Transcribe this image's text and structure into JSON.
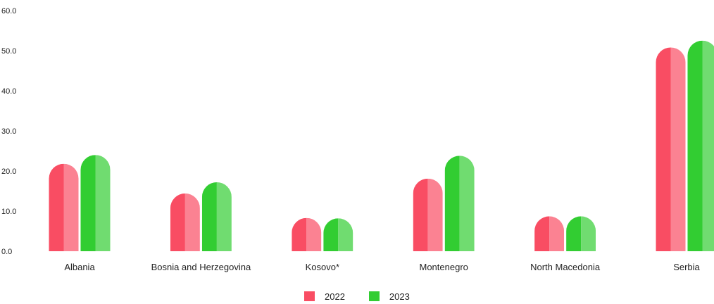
{
  "chart_data": {
    "type": "bar",
    "title": "",
    "xlabel": "",
    "ylabel": "",
    "ylim": [
      0,
      60
    ],
    "yticks": [
      "0.0",
      "10.0",
      "20.0",
      "30.0",
      "40.0",
      "50.0",
      "60.0"
    ],
    "grid": false,
    "legend_position": "bottom-center",
    "categories": [
      "Albania",
      "Bosnia and Herzegovina",
      "Kosovo*",
      "Montenegro",
      "North Macedonia",
      "Serbia"
    ],
    "series": [
      {
        "name": "2022",
        "color": "#f94d63",
        "values": [
          21.8,
          14.4,
          8.3,
          18.1,
          8.7,
          50.8
        ]
      },
      {
        "name": "2023",
        "color": "#32cd32",
        "values": [
          24.0,
          17.2,
          8.2,
          23.8,
          8.7,
          52.5
        ]
      }
    ]
  }
}
